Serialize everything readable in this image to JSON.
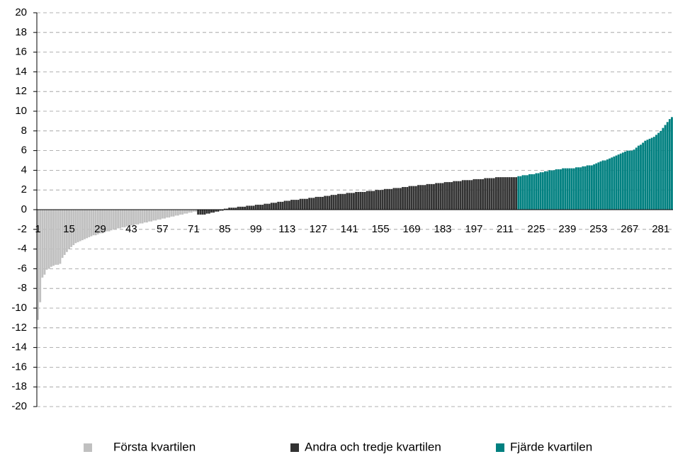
{
  "chart_data": {
    "type": "bar",
    "categories": [
      1,
      null,
      null,
      null,
      null,
      null,
      null,
      null,
      null,
      null,
      null,
      null,
      null,
      null,
      15,
      null,
      null,
      null,
      null,
      null,
      null,
      null,
      null,
      null,
      null,
      null,
      null,
      null,
      29,
      null,
      null,
      null,
      null,
      null,
      null,
      null,
      null,
      null,
      null,
      null,
      null,
      null,
      43,
      null,
      null,
      null,
      null,
      null,
      null,
      null,
      null,
      null,
      null,
      null,
      null,
      null,
      57,
      null,
      null,
      null,
      null,
      null,
      null,
      null,
      null,
      null,
      null,
      null,
      null,
      null,
      71,
      null,
      null,
      null,
      null,
      null,
      null,
      null,
      null,
      null,
      null,
      null,
      null,
      null,
      85,
      null,
      null,
      null,
      null,
      null,
      null,
      null,
      null,
      null,
      null,
      null,
      null,
      null,
      99,
      null,
      null,
      null,
      null,
      null,
      null,
      null,
      null,
      null,
      null,
      null,
      null,
      null,
      113,
      null,
      null,
      null,
      null,
      null,
      null,
      null,
      null,
      null,
      null,
      null,
      null,
      null,
      127,
      null,
      null,
      null,
      null,
      null,
      null,
      null,
      null,
      null,
      null,
      null,
      null,
      null,
      141,
      null,
      null,
      null,
      null,
      null,
      null,
      null,
      null,
      null,
      null,
      null,
      null,
      null,
      155,
      null,
      null,
      null,
      null,
      null,
      null,
      null,
      null,
      null,
      null,
      null,
      null,
      null,
      169,
      null,
      null,
      null,
      null,
      null,
      null,
      null,
      null,
      null,
      null,
      null,
      null,
      null,
      183,
      null,
      null,
      null,
      null,
      null,
      null,
      null,
      null,
      null,
      null,
      null,
      null,
      null,
      197,
      null,
      null,
      null,
      null,
      null,
      null,
      null,
      null,
      null,
      null,
      null,
      null,
      null,
      211,
      null,
      null,
      null,
      null,
      null,
      null,
      null,
      null,
      null,
      null,
      null,
      null,
      null,
      225,
      null,
      null,
      null,
      null,
      null,
      null,
      null,
      null,
      null,
      null,
      null,
      null,
      null,
      239,
      null,
      null,
      null,
      null,
      null,
      null,
      null,
      null,
      null,
      null,
      null,
      null,
      null,
      253,
      null,
      null,
      null,
      null,
      null,
      null,
      null,
      null,
      null,
      null,
      null,
      null,
      null,
      267,
      null,
      null,
      null,
      null,
      null,
      null,
      null,
      null,
      null,
      null,
      null,
      null,
      null,
      281,
      null,
      null,
      null,
      null,
      null
    ],
    "series": [
      {
        "name": "Första kvartilen",
        "color": "#c0c0c0",
        "values": [
          -11.2,
          -9.4,
          -6.9,
          -6.6,
          -6.1,
          -6.0,
          -5.8,
          -5.7,
          -5.6,
          -5.6,
          -5.5,
          -4.9,
          -4.6,
          -4.3,
          -4.0,
          -3.8,
          -3.6,
          -3.4,
          -3.3,
          -3.2,
          -3.1,
          -3.0,
          -2.9,
          -2.8,
          -2.7,
          -2.6,
          -2.6,
          -2.5,
          -2.4,
          -2.4,
          -2.3,
          -2.2,
          -2.2,
          -2.1,
          -2.0,
          -2.0,
          -1.9,
          -1.9,
          -1.8,
          -1.8,
          -1.7,
          -1.7,
          -1.6,
          -1.6,
          -1.5,
          -1.5,
          -1.4,
          -1.4,
          -1.3,
          -1.3,
          -1.2,
          -1.2,
          -1.1,
          -1.1,
          -1.0,
          -1.0,
          -0.9,
          -0.9,
          -0.8,
          -0.8,
          -0.7,
          -0.7,
          -0.6,
          -0.6,
          -0.5,
          -0.5,
          -0.4,
          -0.4,
          -0.3,
          -0.3,
          -0.2,
          -0.2,
          null,
          null,
          null,
          null,
          null,
          null,
          null,
          null,
          null,
          null,
          null,
          null,
          null,
          null,
          null,
          null,
          null,
          null,
          null,
          null,
          null,
          null,
          null,
          null,
          null,
          null,
          null,
          null,
          null,
          null,
          null,
          null,
          null,
          null,
          null,
          null,
          null,
          null,
          null,
          null,
          null,
          null,
          null,
          null,
          null,
          null,
          null,
          null,
          null,
          null,
          null,
          null,
          null,
          null,
          null,
          null,
          null,
          null,
          null,
          null,
          null,
          null,
          null,
          null,
          null,
          null,
          null,
          null,
          null,
          null,
          null,
          null,
          null,
          null,
          null,
          null,
          null,
          null,
          null,
          null,
          null,
          null,
          null,
          null,
          null,
          null,
          null,
          null,
          null,
          null,
          null,
          null,
          null,
          null,
          null,
          null,
          null,
          null,
          null,
          null,
          null,
          null,
          null,
          null,
          null,
          null,
          null,
          null,
          null,
          null,
          null,
          null,
          null,
          null,
          null,
          null,
          null,
          null,
          null,
          null,
          null,
          null,
          null,
          null,
          null,
          null,
          null,
          null,
          null,
          null,
          null,
          null,
          null,
          null,
          null,
          null,
          null,
          null,
          null,
          null,
          null,
          null,
          null,
          null,
          null,
          null,
          null,
          null,
          null,
          null,
          null,
          null,
          null,
          null,
          null,
          null,
          null,
          null,
          null,
          null,
          null,
          null,
          null,
          null,
          null,
          null,
          null,
          null,
          null,
          null,
          null,
          null,
          null,
          null,
          null,
          null,
          null,
          null,
          null,
          null,
          null,
          null,
          null,
          null,
          null,
          null,
          null,
          null,
          null,
          null,
          null,
          null,
          null,
          null,
          null,
          null,
          null,
          null,
          null,
          null,
          null,
          null,
          null,
          null,
          null,
          null,
          null,
          null,
          null,
          null,
          null,
          null,
          null,
          null
        ]
      },
      {
        "name": "Andra och tredje kvartilen",
        "color": "#333333",
        "values": [
          null,
          null,
          null,
          null,
          null,
          null,
          null,
          null,
          null,
          null,
          null,
          null,
          null,
          null,
          null,
          null,
          null,
          null,
          null,
          null,
          null,
          null,
          null,
          null,
          null,
          null,
          null,
          null,
          null,
          null,
          null,
          null,
          null,
          null,
          null,
          null,
          null,
          null,
          null,
          null,
          null,
          null,
          null,
          null,
          null,
          null,
          null,
          null,
          null,
          null,
          null,
          null,
          null,
          null,
          null,
          null,
          null,
          null,
          null,
          null,
          null,
          null,
          null,
          null,
          null,
          null,
          null,
          null,
          null,
          null,
          null,
          null,
          -0.5,
          -0.5,
          -0.5,
          -0.5,
          -0.4,
          -0.4,
          -0.3,
          -0.3,
          -0.2,
          -0.2,
          -0.1,
          -0.1,
          0.1,
          0.1,
          0.2,
          0.2,
          0.2,
          0.2,
          0.3,
          0.3,
          0.3,
          0.3,
          0.4,
          0.4,
          0.4,
          0.4,
          0.5,
          0.5,
          0.5,
          0.5,
          0.6,
          0.6,
          0.6,
          0.7,
          0.7,
          0.7,
          0.8,
          0.8,
          0.8,
          0.9,
          0.9,
          0.9,
          1.0,
          1.0,
          1.0,
          1.0,
          1.1,
          1.1,
          1.1,
          1.1,
          1.2,
          1.2,
          1.2,
          1.3,
          1.3,
          1.3,
          1.3,
          1.4,
          1.4,
          1.4,
          1.5,
          1.5,
          1.5,
          1.6,
          1.6,
          1.6,
          1.6,
          1.7,
          1.7,
          1.7,
          1.7,
          1.8,
          1.8,
          1.8,
          1.8,
          1.8,
          1.9,
          1.9,
          1.9,
          1.9,
          2.0,
          2.0,
          2.0,
          2.0,
          2.1,
          2.1,
          2.1,
          2.1,
          2.2,
          2.2,
          2.2,
          2.2,
          2.3,
          2.3,
          2.3,
          2.4,
          2.4,
          2.4,
          2.4,
          2.5,
          2.5,
          2.5,
          2.5,
          2.6,
          2.6,
          2.6,
          2.6,
          2.7,
          2.7,
          2.7,
          2.7,
          2.8,
          2.8,
          2.8,
          2.8,
          2.9,
          2.9,
          2.9,
          2.9,
          3.0,
          3.0,
          3.0,
          3.0,
          3.0,
          3.1,
          3.1,
          3.1,
          3.1,
          3.1,
          3.2,
          3.2,
          3.2,
          3.2,
          3.2,
          3.3,
          3.3,
          3.3,
          3.3,
          3.3,
          3.3,
          3.3,
          3.3,
          3.3,
          3.3,
          null,
          null,
          null,
          null,
          null,
          null,
          null,
          null,
          null,
          null,
          null,
          null,
          null,
          null,
          null,
          null,
          null,
          null,
          null,
          null,
          null,
          null,
          null,
          null,
          null,
          null,
          null,
          null,
          null,
          null,
          null,
          null,
          null,
          null,
          null,
          null,
          null,
          null,
          null,
          null,
          null,
          null,
          null,
          null,
          null,
          null,
          null,
          null,
          null,
          null,
          null,
          null,
          null,
          null,
          null,
          null,
          null,
          null,
          null,
          null,
          null,
          null,
          null,
          null,
          null,
          null,
          null,
          null,
          null,
          null
        ]
      },
      {
        "name": "Fjärde kvartilen",
        "color": "#008080",
        "values": [
          null,
          null,
          null,
          null,
          null,
          null,
          null,
          null,
          null,
          null,
          null,
          null,
          null,
          null,
          null,
          null,
          null,
          null,
          null,
          null,
          null,
          null,
          null,
          null,
          null,
          null,
          null,
          null,
          null,
          null,
          null,
          null,
          null,
          null,
          null,
          null,
          null,
          null,
          null,
          null,
          null,
          null,
          null,
          null,
          null,
          null,
          null,
          null,
          null,
          null,
          null,
          null,
          null,
          null,
          null,
          null,
          null,
          null,
          null,
          null,
          null,
          null,
          null,
          null,
          null,
          null,
          null,
          null,
          null,
          null,
          null,
          null,
          null,
          null,
          null,
          null,
          null,
          null,
          null,
          null,
          null,
          null,
          null,
          null,
          null,
          null,
          null,
          null,
          null,
          null,
          null,
          null,
          null,
          null,
          null,
          null,
          null,
          null,
          null,
          null,
          null,
          null,
          null,
          null,
          null,
          null,
          null,
          null,
          null,
          null,
          null,
          null,
          null,
          null,
          null,
          null,
          null,
          null,
          null,
          null,
          null,
          null,
          null,
          null,
          null,
          null,
          null,
          null,
          null,
          null,
          null,
          null,
          null,
          null,
          null,
          null,
          null,
          null,
          null,
          null,
          null,
          null,
          null,
          null,
          null,
          null,
          null,
          null,
          null,
          null,
          null,
          null,
          null,
          null,
          null,
          null,
          null,
          null,
          null,
          null,
          null,
          null,
          null,
          null,
          null,
          null,
          null,
          null,
          null,
          null,
          null,
          null,
          null,
          null,
          null,
          null,
          null,
          null,
          null,
          null,
          null,
          null,
          null,
          null,
          null,
          null,
          null,
          null,
          null,
          null,
          null,
          null,
          null,
          null,
          null,
          null,
          null,
          null,
          null,
          null,
          null,
          null,
          null,
          null,
          null,
          null,
          null,
          null,
          null,
          null,
          null,
          null,
          null,
          null,
          null,
          null,
          3.4,
          3.4,
          3.5,
          3.5,
          3.5,
          3.6,
          3.6,
          3.6,
          3.7,
          3.7,
          3.8,
          3.8,
          3.9,
          3.9,
          4.0,
          4.0,
          4.0,
          4.1,
          4.1,
          4.1,
          4.2,
          4.2,
          4.2,
          4.2,
          4.2,
          4.2,
          4.3,
          4.3,
          4.3,
          4.4,
          4.4,
          4.5,
          4.5,
          4.5,
          4.6,
          4.7,
          4.8,
          4.9,
          5.0,
          5.0,
          5.1,
          5.2,
          5.3,
          5.4,
          5.5,
          5.6,
          5.7,
          5.8,
          5.9,
          6.0,
          6.0,
          6.0,
          6.1,
          6.3,
          6.5,
          6.6,
          6.8,
          7.0,
          7.1,
          7.2,
          7.3,
          7.4,
          7.6,
          7.8,
          8.0,
          8.3,
          8.6,
          8.9,
          9.2,
          9.4
        ]
      }
    ],
    "ylim": [
      -20,
      20
    ],
    "yticks": [
      -20,
      -18,
      -16,
      -14,
      -12,
      -10,
      -8,
      -6,
      -4,
      -2,
      0,
      2,
      4,
      6,
      8,
      10,
      12,
      14,
      16,
      18,
      20
    ],
    "grid": true,
    "legend": "bottom"
  }
}
